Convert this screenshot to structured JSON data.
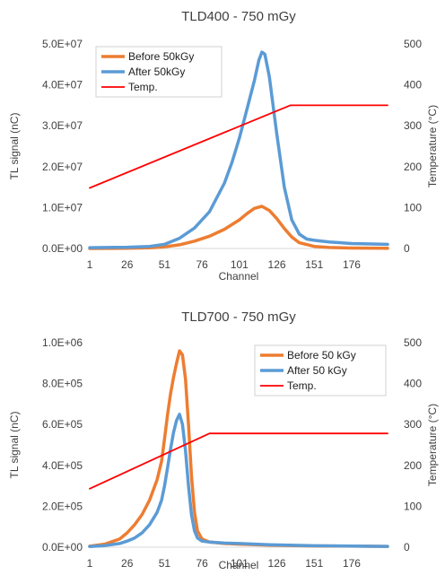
{
  "chart_data": [
    {
      "type": "line",
      "title": "TLD400 - 750 mGy",
      "xlabel": "Channel",
      "ylabel": "TL signal (nC)",
      "y2label": "Temperature (°C)",
      "x_ticks": [
        "1",
        "26",
        "51",
        "76",
        "101",
        "126",
        "151",
        "176"
      ],
      "xlim": [
        1,
        200
      ],
      "ylim": [
        0,
        50000000
      ],
      "y_ticks": [
        "0.0E+00",
        "1.0E+07",
        "2.0E+07",
        "3.0E+07",
        "4.0E+07",
        "5.0E+07"
      ],
      "y2lim": [
        0,
        500
      ],
      "y2_ticks": [
        "0",
        "100",
        "200",
        "300",
        "400",
        "500"
      ],
      "legend_position": "top-left",
      "series": [
        {
          "name": "Before 50kGy",
          "axis": "left",
          "color": "#ED7D31",
          "x": [
            1,
            26,
            41,
            51,
            61,
            71,
            81,
            91,
            101,
            106,
            111,
            116,
            121,
            126,
            131,
            136,
            141,
            151,
            161,
            176,
            200
          ],
          "y": [
            0,
            50000,
            150000,
            400000,
            900000,
            1800000,
            3000000,
            4700000,
            7000000,
            8500000,
            9800000,
            10300000,
            9300000,
            7300000,
            4900000,
            2800000,
            1400000,
            500000,
            250000,
            120000,
            50000
          ]
        },
        {
          "name": "After 50kGy",
          "axis": "left",
          "color": "#5B9BD5",
          "x": [
            1,
            26,
            41,
            51,
            61,
            71,
            81,
            91,
            96,
            101,
            106,
            111,
            114,
            116,
            118,
            121,
            126,
            131,
            136,
            141,
            146,
            151,
            161,
            176,
            200
          ],
          "y": [
            200000,
            300000,
            500000,
            1000000,
            2500000,
            5000000,
            9000000,
            16000000,
            21000000,
            27000000,
            34000000,
            41000000,
            46000000,
            48000000,
            47500000,
            42000000,
            28000000,
            15000000,
            7000000,
            3500000,
            2300000,
            2000000,
            1600000,
            1200000,
            1000000
          ]
        },
        {
          "name": "Temp.",
          "axis": "right",
          "color": "#FF0000",
          "x": [
            1,
            135,
            200
          ],
          "y": [
            148,
            350,
            350
          ]
        }
      ]
    },
    {
      "type": "line",
      "title": "TLD700 - 750 mGy",
      "xlabel": "Channel",
      "ylabel": "TL signal (nC)",
      "y2label": "Temperature (°C)",
      "x_ticks": [
        "1",
        "26",
        "51",
        "76",
        "101",
        "126",
        "151",
        "176"
      ],
      "xlim": [
        1,
        200
      ],
      "ylim": [
        0,
        1000000
      ],
      "y_ticks": [
        "0.0E+00",
        "2.0E+05",
        "4.0E+05",
        "6.0E+05",
        "8.0E+05",
        "1.0E+06"
      ],
      "y2lim": [
        0,
        500
      ],
      "y2_ticks": [
        "0",
        "100",
        "200",
        "300",
        "400",
        "500"
      ],
      "legend_position": "top-right",
      "series": [
        {
          "name": "Before 50 kGy",
          "axis": "left",
          "color": "#ED7D31",
          "x": [
            1,
            11,
            21,
            26,
            31,
            36,
            41,
            46,
            49,
            51,
            53,
            55,
            57,
            59,
            61,
            63,
            65,
            67,
            69,
            71,
            73,
            76,
            81,
            91,
            101,
            121,
            151,
            200
          ],
          "y": [
            5000,
            15000,
            40000,
            70000,
            110000,
            160000,
            230000,
            330000,
            420000,
            530000,
            650000,
            750000,
            830000,
            900000,
            960000,
            940000,
            820000,
            600000,
            350000,
            170000,
            80000,
            40000,
            25000,
            18000,
            15000,
            10000,
            6000,
            4000
          ]
        },
        {
          "name": "After 50 kGy",
          "axis": "left",
          "color": "#5B9BD5",
          "x": [
            1,
            11,
            21,
            26,
            31,
            36,
            41,
            46,
            49,
            51,
            53,
            55,
            57,
            59,
            61,
            63,
            65,
            67,
            69,
            71,
            73,
            76,
            81,
            91,
            101,
            121,
            151,
            200
          ],
          "y": [
            3000,
            8000,
            18000,
            30000,
            45000,
            70000,
            110000,
            170000,
            230000,
            300000,
            390000,
            480000,
            560000,
            620000,
            650000,
            600000,
            470000,
            300000,
            160000,
            80000,
            45000,
            30000,
            25000,
            20000,
            18000,
            12000,
            7000,
            4000
          ]
        },
        {
          "name": "Temp.",
          "axis": "right",
          "color": "#FF0000",
          "x": [
            1,
            81,
            200
          ],
          "y": [
            143,
            278,
            278
          ]
        }
      ]
    }
  ]
}
